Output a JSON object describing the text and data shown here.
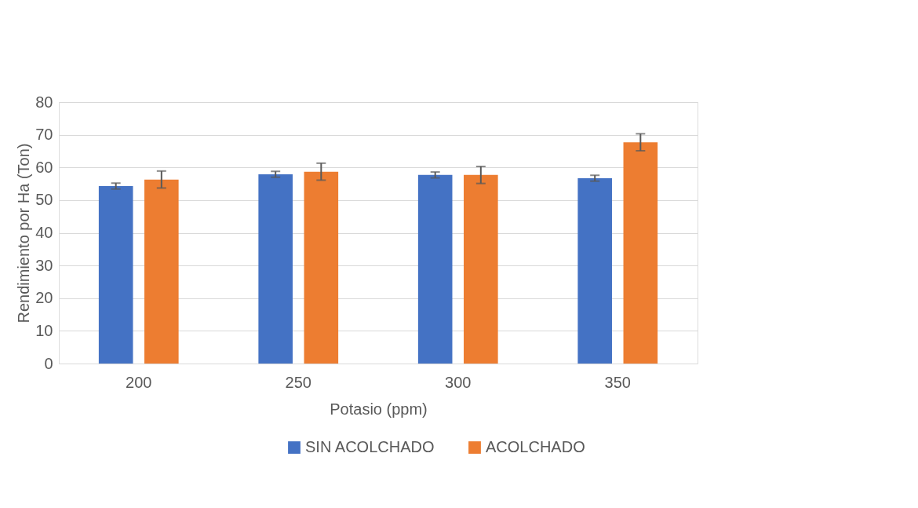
{
  "chart_data": {
    "type": "bar",
    "xlabel": "Potasio (ppm)",
    "ylabel": "Rendimiento por Ha (Ton)",
    "categories": [
      "200",
      "250",
      "300",
      "350"
    ],
    "series": [
      {
        "name": "SIN ACOLCHADO",
        "color": "#4472c4",
        "values": [
          54.3,
          57.9,
          57.7,
          56.7
        ],
        "errors": [
          0.9,
          0.9,
          0.9,
          0.9
        ]
      },
      {
        "name": "ACOLCHADO",
        "color": "#ed7d31",
        "values": [
          56.3,
          58.7,
          57.7,
          67.7
        ],
        "errors": [
          2.6,
          2.6,
          2.6,
          2.6
        ]
      }
    ],
    "ylim": [
      0,
      80
    ],
    "yticks": [
      0,
      10,
      20,
      30,
      40,
      50,
      60,
      70,
      80
    ],
    "grid": "y",
    "legend": "bottom"
  }
}
